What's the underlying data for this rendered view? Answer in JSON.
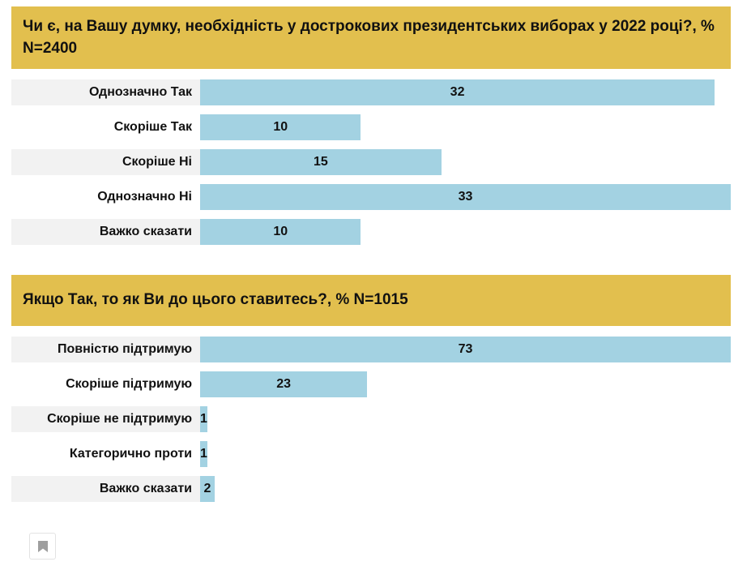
{
  "colors": {
    "banner_bg": "#e2bf4e",
    "bar_fill": "#a3d2e2",
    "alt_row_bg": "#f2f2f2",
    "text": "#111111"
  },
  "chart_data": [
    {
      "type": "bar",
      "orientation": "horizontal",
      "title": "Чи є, на Вашу думку, необхідність у дострокових президентських виборах у 2022 році?, % N=2400",
      "categories": [
        "Однозначно Так",
        "Скоріше Так",
        "Скоріше Ні",
        "Однозначно Ні",
        "Важко сказати"
      ],
      "values": [
        32,
        10,
        15,
        33,
        10
      ],
      "xmax": 33,
      "value_label_position": "inside-center",
      "grid": false,
      "legend": false
    },
    {
      "type": "bar",
      "orientation": "horizontal",
      "title": "Якщо Так, то як Ви до цього ставитесь?, % N=1015",
      "categories": [
        "Повністю підтримую",
        "Скоріше підтримую",
        "Скоріше не підтримую",
        "Категорично проти",
        "Важко сказати"
      ],
      "values": [
        73,
        23,
        1,
        1,
        2
      ],
      "xmax": 73,
      "value_label_position": "inside-center",
      "grid": false,
      "legend": false
    }
  ],
  "footer": {
    "bookmark_icon": "bookmark-icon"
  }
}
